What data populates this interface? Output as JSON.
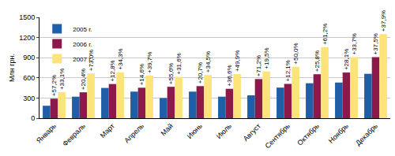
{
  "chart_data": {
    "type": "bar",
    "y_label": "Млн грн.",
    "categories": [
      "Январь",
      "Февраль",
      "Март",
      "Апрель",
      "Май",
      "Июнь",
      "Июль",
      "Август",
      "Сентябрь",
      "Октябрь",
      "Ноябрь",
      "Декабрь"
    ],
    "series": [
      {
        "name": "2005 г.",
        "color": "#1f5fa8",
        "values": [
          185,
          320,
          450,
          395,
          300,
          395,
          320,
          340,
          455,
          520,
          530,
          660
        ]
      },
      {
        "name": "2006 г.",
        "color": "#8b1a4a",
        "values": [
          290,
          385,
          508,
          453,
          467,
          477,
          437,
          582,
          510,
          654,
          679,
          908
        ],
        "annotations": [
          "+57,2%",
          "+20,4%",
          "+12,8%",
          "+14,6%",
          "+55,6%",
          "+20,7%",
          "+36,6%",
          "+71,2%",
          "+12,1%",
          "+25,8%",
          "+28,1%",
          "+37,5%"
        ]
      },
      {
        "name": "2007 г.",
        "color": "#fde47a",
        "values": [
          386,
          666,
          682,
          633,
          615,
          642,
          655,
          695,
          765,
          1054,
          908,
          1252
        ],
        "annotations": [
          "+33,1%",
          "+73,0%",
          "+34,3%",
          "+39,7%",
          "+31,6%",
          "+34,5%",
          "+49,9%",
          "+19,5%",
          "+50,0%",
          "+61,2%",
          "+33,7%",
          "+37,9%"
        ]
      }
    ],
    "ylim": [
      0,
      1500
    ],
    "yticks": [
      0,
      300,
      600,
      900,
      1200,
      1500
    ],
    "grid": true,
    "legend": "top-left"
  }
}
